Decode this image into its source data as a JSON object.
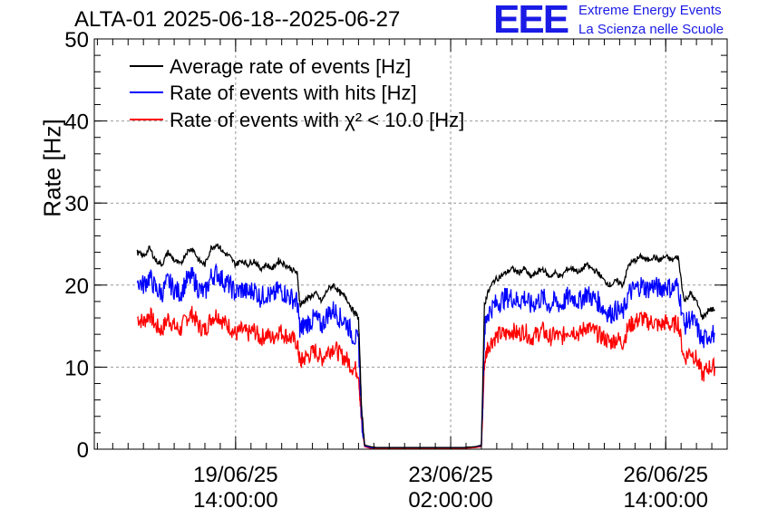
{
  "title": "ALTA-01 2025-06-18--2025-06-27",
  "logo": {
    "mark": "EEE",
    "line1": "Extreme Energy Events",
    "line2": "La Scienza nelle Scuole"
  },
  "chart_data": {
    "type": "line",
    "title": "ALTA-01 2025-06-18--2025-06-27",
    "ylabel": "Rate [Hz]",
    "xlabel": "",
    "ylim": [
      0,
      50
    ],
    "yticks": [
      0,
      10,
      20,
      30,
      40,
      50
    ],
    "xticks": [
      {
        "t": 1.0,
        "line1": "19/06/25",
        "line2": "14:00:00"
      },
      {
        "t": 4.5,
        "line1": "23/06/25",
        "line2": "02:00:00"
      },
      {
        "t": 8.0,
        "line1": "26/06/25",
        "line2": "14:00:00"
      }
    ],
    "xaxis_unit": "days since 18/06/25 14:00:00",
    "xlim": [
      -1.3,
      9.0
    ],
    "grid": true,
    "legend_position": "top-left",
    "series": [
      {
        "name": "Average rate of events [Hz]",
        "color": "#000000",
        "x": [
          -0.6,
          -0.5,
          -0.4,
          -0.3,
          -0.2,
          -0.1,
          0.0,
          0.1,
          0.2,
          0.3,
          0.4,
          0.5,
          0.6,
          0.7,
          0.8,
          0.9,
          1.0,
          1.1,
          1.2,
          1.3,
          1.4,
          1.5,
          1.6,
          1.7,
          1.8,
          1.9,
          2.0,
          2.05,
          2.1,
          2.2,
          2.3,
          2.4,
          2.5,
          2.6,
          2.7,
          2.8,
          2.9,
          3.0,
          3.05,
          3.1,
          3.2,
          3.3,
          3.5,
          3.7,
          3.9,
          4.1,
          4.3,
          4.5,
          4.7,
          4.9,
          5.0,
          5.05,
          5.1,
          5.2,
          5.3,
          5.4,
          5.5,
          5.6,
          5.7,
          5.8,
          5.9,
          6.0,
          6.1,
          6.2,
          6.3,
          6.4,
          6.5,
          6.6,
          6.7,
          6.8,
          6.9,
          7.0,
          7.1,
          7.2,
          7.3,
          7.4,
          7.5,
          7.6,
          7.7,
          7.8,
          7.9,
          8.0,
          8.1,
          8.2,
          8.3,
          8.4,
          8.5,
          8.6,
          8.7,
          8.8
        ],
        "y": [
          24.0,
          23.5,
          24.5,
          23.0,
          22.5,
          24.0,
          23.0,
          22.5,
          24.0,
          24.5,
          23.0,
          22.5,
          24.5,
          25.0,
          24.0,
          23.5,
          22.5,
          23.0,
          22.5,
          23.0,
          22.0,
          22.5,
          22.0,
          23.0,
          22.5,
          22.0,
          21.5,
          17.5,
          18.0,
          18.5,
          19.0,
          18.0,
          19.5,
          20.0,
          19.0,
          18.5,
          17.0,
          16.0,
          5.0,
          0.5,
          0.3,
          0.2,
          0.2,
          0.2,
          0.2,
          0.2,
          0.2,
          0.2,
          0.2,
          0.3,
          0.5,
          17.5,
          19.0,
          20.5,
          21.0,
          21.5,
          22.0,
          21.5,
          22.0,
          21.0,
          21.5,
          22.0,
          21.0,
          21.5,
          21.0,
          22.0,
          22.0,
          21.5,
          22.5,
          22.0,
          21.5,
          20.5,
          20.0,
          20.5,
          20.0,
          22.5,
          23.0,
          23.5,
          23.0,
          23.5,
          23.0,
          23.5,
          23.0,
          23.5,
          18.0,
          19.0,
          18.0,
          16.0,
          17.0,
          17.0
        ]
      },
      {
        "name": "Rate of events with hits [Hz]",
        "color": "#0000ff",
        "x": [
          -0.6,
          -0.5,
          -0.4,
          -0.3,
          -0.2,
          -0.1,
          0.0,
          0.1,
          0.2,
          0.3,
          0.4,
          0.5,
          0.6,
          0.7,
          0.8,
          0.9,
          1.0,
          1.1,
          1.2,
          1.3,
          1.4,
          1.5,
          1.6,
          1.7,
          1.8,
          1.9,
          2.0,
          2.05,
          2.1,
          2.2,
          2.3,
          2.4,
          2.5,
          2.6,
          2.7,
          2.8,
          2.9,
          3.0,
          3.05,
          3.1,
          3.2,
          3.3,
          3.5,
          3.7,
          3.9,
          4.1,
          4.3,
          4.5,
          4.7,
          4.9,
          5.0,
          5.05,
          5.1,
          5.2,
          5.3,
          5.4,
          5.5,
          5.6,
          5.7,
          5.8,
          5.9,
          6.0,
          6.1,
          6.2,
          6.3,
          6.4,
          6.5,
          6.6,
          6.7,
          6.8,
          6.9,
          7.0,
          7.1,
          7.2,
          7.3,
          7.4,
          7.5,
          7.6,
          7.7,
          7.8,
          7.9,
          8.0,
          8.1,
          8.2,
          8.3,
          8.4,
          8.5,
          8.6,
          8.7,
          8.8
        ],
        "y": [
          20.5,
          20.0,
          21.0,
          19.5,
          19.0,
          20.5,
          19.5,
          19.0,
          20.5,
          21.0,
          19.5,
          19.0,
          21.0,
          21.5,
          20.5,
          20.0,
          19.0,
          19.5,
          19.0,
          19.5,
          18.5,
          19.0,
          18.5,
          19.5,
          19.0,
          18.5,
          18.0,
          14.5,
          15.0,
          15.5,
          16.0,
          15.0,
          16.5,
          17.0,
          16.0,
          15.5,
          14.0,
          13.0,
          4.0,
          0.4,
          0.2,
          0.2,
          0.2,
          0.2,
          0.2,
          0.2,
          0.2,
          0.2,
          0.2,
          0.3,
          0.4,
          14.5,
          16.5,
          17.5,
          18.0,
          18.5,
          18.5,
          18.0,
          18.5,
          17.5,
          18.0,
          18.5,
          17.5,
          18.0,
          17.5,
          18.5,
          18.5,
          18.0,
          19.0,
          18.5,
          18.0,
          17.0,
          16.5,
          17.0,
          16.5,
          19.0,
          19.5,
          20.0,
          19.5,
          20.0,
          19.5,
          20.0,
          19.5,
          20.0,
          15.0,
          16.0,
          15.0,
          13.0,
          14.0,
          14.0
        ]
      },
      {
        "name": "Rate of events with χ² < 10.0 [Hz]",
        "color": "#ff0000",
        "x": [
          -0.6,
          -0.5,
          -0.4,
          -0.3,
          -0.2,
          -0.1,
          0.0,
          0.1,
          0.2,
          0.3,
          0.4,
          0.5,
          0.6,
          0.7,
          0.8,
          0.9,
          1.0,
          1.1,
          1.2,
          1.3,
          1.4,
          1.5,
          1.6,
          1.7,
          1.8,
          1.9,
          2.0,
          2.05,
          2.1,
          2.2,
          2.3,
          2.4,
          2.5,
          2.6,
          2.7,
          2.8,
          2.9,
          3.0,
          3.05,
          3.1,
          3.2,
          3.3,
          3.5,
          3.7,
          3.9,
          4.1,
          4.3,
          4.5,
          4.7,
          4.9,
          5.0,
          5.05,
          5.1,
          5.2,
          5.3,
          5.4,
          5.5,
          5.6,
          5.7,
          5.8,
          5.9,
          6.0,
          6.1,
          6.2,
          6.3,
          6.4,
          6.5,
          6.6,
          6.7,
          6.8,
          6.9,
          7.0,
          7.1,
          7.2,
          7.3,
          7.4,
          7.5,
          7.6,
          7.7,
          7.8,
          7.9,
          8.0,
          8.1,
          8.2,
          8.3,
          8.4,
          8.5,
          8.6,
          8.7,
          8.8
        ],
        "y": [
          16.0,
          15.5,
          16.5,
          15.0,
          14.5,
          16.0,
          15.0,
          14.5,
          16.0,
          16.5,
          15.0,
          14.5,
          16.0,
          16.5,
          15.5,
          15.0,
          14.0,
          14.5,
          14.0,
          14.5,
          13.5,
          14.0,
          13.5,
          14.5,
          14.0,
          13.5,
          13.0,
          10.5,
          11.0,
          11.5,
          12.0,
          11.0,
          12.0,
          12.5,
          11.5,
          11.0,
          10.0,
          9.5,
          3.0,
          0.3,
          0.1,
          0.1,
          0.1,
          0.1,
          0.1,
          0.1,
          0.1,
          0.1,
          0.1,
          0.2,
          0.3,
          10.5,
          12.5,
          13.5,
          14.0,
          14.0,
          14.5,
          14.0,
          14.5,
          13.5,
          14.0,
          14.5,
          13.5,
          14.0,
          13.5,
          14.5,
          14.5,
          14.0,
          15.0,
          14.5,
          14.0,
          13.5,
          13.0,
          13.5,
          13.0,
          15.0,
          15.5,
          16.0,
          15.5,
          15.5,
          15.0,
          15.5,
          15.0,
          15.5,
          11.0,
          12.0,
          11.0,
          9.0,
          10.0,
          10.0
        ]
      }
    ]
  }
}
